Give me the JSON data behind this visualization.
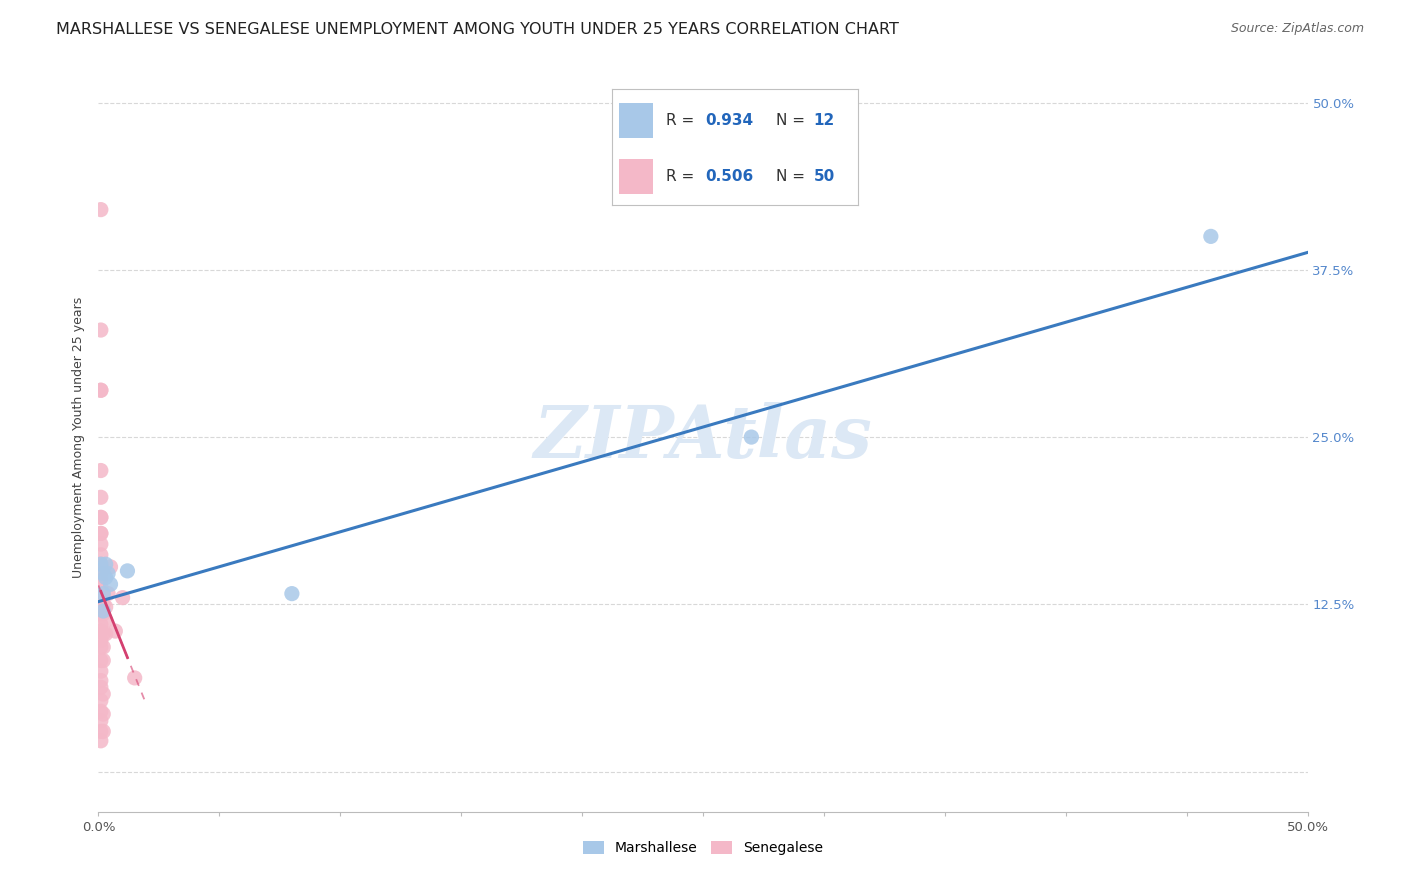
{
  "title": "MARSHALLESE VS SENEGALESE UNEMPLOYMENT AMONG YOUTH UNDER 25 YEARS CORRELATION CHART",
  "source": "Source: ZipAtlas.com",
  "ylabel": "Unemployment Among Youth under 25 years",
  "xlim": [
    0.0,
    0.5
  ],
  "ylim": [
    -0.03,
    0.53
  ],
  "xtick_positions": [
    0.0,
    0.05,
    0.1,
    0.15,
    0.2,
    0.25,
    0.3,
    0.35,
    0.4,
    0.45,
    0.5
  ],
  "ytick_positions": [
    0.0,
    0.125,
    0.25,
    0.375,
    0.5
  ],
  "ytick_labels": [
    "",
    "12.5%",
    "25.0%",
    "37.5%",
    "50.0%"
  ],
  "legend_label_blue": "Marshallese",
  "legend_label_pink": "Senegalese",
  "blue_color": "#a8c8e8",
  "pink_color": "#f4b8c8",
  "blue_line_color": "#3a7abf",
  "pink_line_color": "#d44070",
  "blue_scatter": [
    [
      0.001,
      0.155
    ],
    [
      0.002,
      0.148
    ],
    [
      0.002,
      0.133
    ],
    [
      0.002,
      0.12
    ],
    [
      0.003,
      0.155
    ],
    [
      0.003,
      0.145
    ],
    [
      0.004,
      0.148
    ],
    [
      0.005,
      0.14
    ],
    [
      0.012,
      0.15
    ],
    [
      0.08,
      0.133
    ],
    [
      0.27,
      0.25
    ],
    [
      0.46,
      0.4
    ]
  ],
  "pink_scatter": [
    [
      0.001,
      0.42
    ],
    [
      0.001,
      0.33
    ],
    [
      0.001,
      0.285
    ],
    [
      0.001,
      0.285
    ],
    [
      0.001,
      0.225
    ],
    [
      0.001,
      0.205
    ],
    [
      0.001,
      0.19
    ],
    [
      0.001,
      0.19
    ],
    [
      0.001,
      0.178
    ],
    [
      0.001,
      0.178
    ],
    [
      0.001,
      0.17
    ],
    [
      0.001,
      0.162
    ],
    [
      0.001,
      0.155
    ],
    [
      0.001,
      0.148
    ],
    [
      0.001,
      0.143
    ],
    [
      0.001,
      0.138
    ],
    [
      0.001,
      0.133
    ],
    [
      0.001,
      0.128
    ],
    [
      0.001,
      0.123
    ],
    [
      0.001,
      0.118
    ],
    [
      0.001,
      0.11
    ],
    [
      0.001,
      0.105
    ],
    [
      0.001,
      0.098
    ],
    [
      0.001,
      0.093
    ],
    [
      0.001,
      0.083
    ],
    [
      0.001,
      0.075
    ],
    [
      0.001,
      0.068
    ],
    [
      0.001,
      0.063
    ],
    [
      0.001,
      0.053
    ],
    [
      0.001,
      0.045
    ],
    [
      0.001,
      0.038
    ],
    [
      0.001,
      0.03
    ],
    [
      0.001,
      0.023
    ],
    [
      0.002,
      0.133
    ],
    [
      0.002,
      0.125
    ],
    [
      0.002,
      0.118
    ],
    [
      0.002,
      0.103
    ],
    [
      0.002,
      0.093
    ],
    [
      0.002,
      0.083
    ],
    [
      0.002,
      0.058
    ],
    [
      0.002,
      0.043
    ],
    [
      0.002,
      0.03
    ],
    [
      0.003,
      0.123
    ],
    [
      0.003,
      0.113
    ],
    [
      0.003,
      0.103
    ],
    [
      0.004,
      0.133
    ],
    [
      0.005,
      0.153
    ],
    [
      0.007,
      0.105
    ],
    [
      0.01,
      0.13
    ],
    [
      0.015,
      0.07
    ]
  ],
  "blue_trend": [
    0.0,
    0.5,
    0.127,
    0.388
  ],
  "pink_trend_solid": [
    0.001,
    0.012,
    0.1,
    0.46
  ],
  "pink_trend_dashed": [
    0.0,
    0.02,
    -0.08,
    0.62
  ],
  "background_color": "#ffffff",
  "grid_color": "#d8d8d8",
  "watermark": "ZIPAtlas",
  "watermark_color": "#dce8f5",
  "title_fontsize": 11.5,
  "source_fontsize": 9,
  "axis_label_fontsize": 9,
  "tick_fontsize": 9.5,
  "legend_fontsize": 11,
  "watermark_fontsize": 52,
  "scatter_size": 120
}
